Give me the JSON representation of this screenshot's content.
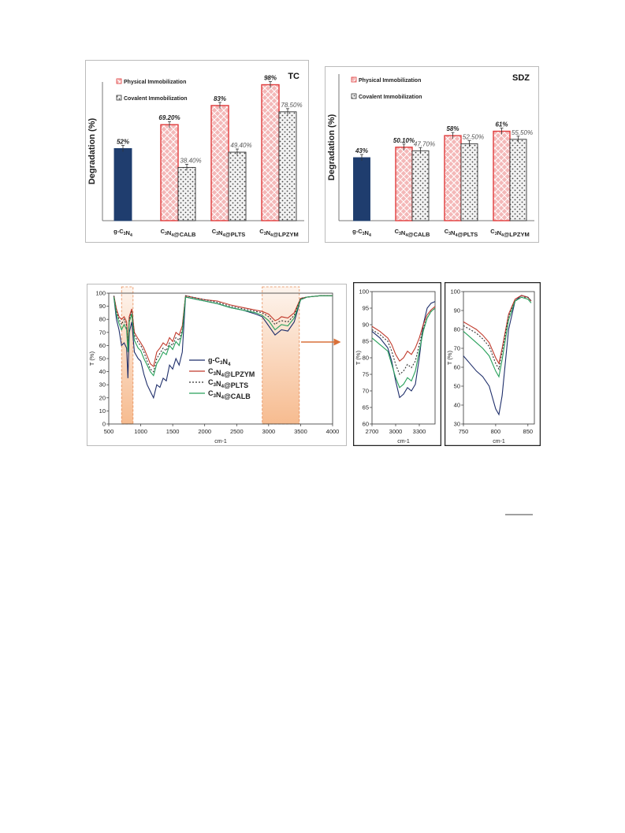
{
  "chart_data": [
    {
      "id": "tc",
      "type": "bar",
      "title": "TC",
      "ylabel": "Degradation (%)",
      "ylim": [
        0,
        100
      ],
      "grid": false,
      "legend_position": "top-left",
      "categories": [
        "g-C$N$",
        "C$N$@CALB",
        "C$N$@PLTS",
        "C$N$@LPZYM"
      ],
      "bars": [
        {
          "category": 0,
          "series": "base",
          "value": 52,
          "label": "52%"
        },
        {
          "category": 1,
          "series": "physical",
          "value": 69.2,
          "label": "69.20%"
        },
        {
          "category": 1,
          "series": "covalent",
          "value": 38.4,
          "label": "38.40%"
        },
        {
          "category": 2,
          "series": "physical",
          "value": 83,
          "label": "83%"
        },
        {
          "category": 2,
          "series": "covalent",
          "value": 49.4,
          "label": "49.40%"
        },
        {
          "category": 3,
          "series": "physical",
          "value": 98,
          "label": "98%"
        },
        {
          "category": 3,
          "series": "covalent",
          "value": 78.5,
          "label": "78.50%"
        }
      ],
      "legend": [
        {
          "series": "physical",
          "name": "Physical Immobilization"
        },
        {
          "series": "covalent",
          "name": "Covalent Immobilization"
        }
      ]
    },
    {
      "id": "sdz",
      "type": "bar",
      "title": "SDZ",
      "ylabel": "Degradation (%)",
      "ylim": [
        0,
        100
      ],
      "grid": false,
      "legend_position": "top-left",
      "categories": [
        "g-C$N$",
        "C$N$@CALB",
        "C$N$@PLTS",
        "C$N$@LPZYM"
      ],
      "bars": [
        {
          "category": 0,
          "series": "base",
          "value": 43,
          "label": "43%"
        },
        {
          "category": 1,
          "series": "physical",
          "value": 50.1,
          "label": "50.10%"
        },
        {
          "category": 1,
          "series": "covalent",
          "value": 47.7,
          "label": "47.70%"
        },
        {
          "category": 2,
          "series": "physical",
          "value": 58,
          "label": "58%"
        },
        {
          "category": 2,
          "series": "covalent",
          "value": 52.5,
          "label": "52.50%"
        },
        {
          "category": 3,
          "series": "physical",
          "value": 61,
          "label": "61%"
        },
        {
          "category": 3,
          "series": "covalent",
          "value": 55.5,
          "label": "55.50%"
        }
      ],
      "legend": [
        {
          "series": "physical",
          "name": "Physical Immobilization"
        },
        {
          "series": "covalent",
          "name": "Covalent Immobilization"
        }
      ]
    },
    {
      "id": "ftir-full",
      "type": "line",
      "xlabel": "cm-1",
      "ylabel": "T (%)",
      "xlim": [
        500,
        4000
      ],
      "ylim": [
        0,
        100
      ],
      "xticks": [
        500,
        1000,
        1500,
        2000,
        2500,
        3000,
        3500,
        4000
      ],
      "yticks": [
        0,
        10,
        20,
        30,
        40,
        50,
        60,
        70,
        80,
        90,
        100
      ],
      "highlight_regions": [
        [
          700,
          880
        ],
        [
          2900,
          3480
        ]
      ],
      "legend_position": "center-left",
      "series": [
        {
          "name": "g-C$N$",
          "color": "#1f2f6b",
          "dash": "",
          "x": [
            580,
            620,
            660,
            700,
            740,
            780,
            800,
            820,
            860,
            900,
            960,
            1000,
            1050,
            1100,
            1150,
            1200,
            1250,
            1300,
            1350,
            1400,
            1450,
            1500,
            1550,
            1600,
            1650,
            1700,
            1800,
            2000,
            2200,
            2400,
            2600,
            2800,
            2900,
            3000,
            3100,
            3150,
            3200,
            3300,
            3400,
            3500,
            3600,
            3800,
            4000
          ],
          "y": [
            97,
            80,
            72,
            60,
            62,
            58,
            35,
            70,
            78,
            55,
            50,
            48,
            38,
            30,
            25,
            20,
            30,
            28,
            35,
            33,
            45,
            42,
            50,
            45,
            55,
            97,
            96,
            94,
            92,
            89,
            87,
            84,
            82,
            75,
            68,
            70,
            72,
            71,
            78,
            95,
            97,
            98,
            98
          ]
        },
        {
          "name": "C$N$@LPZYM",
          "color": "#c0392b",
          "dash": "",
          "x": [
            580,
            620,
            660,
            700,
            740,
            780,
            800,
            820,
            860,
            900,
            960,
            1000,
            1050,
            1100,
            1150,
            1200,
            1250,
            1300,
            1350,
            1400,
            1450,
            1500,
            1550,
            1600,
            1650,
            1700,
            1800,
            2000,
            2200,
            2400,
            2600,
            2800,
            2900,
            3000,
            3100,
            3150,
            3200,
            3300,
            3400,
            3500,
            3600,
            3800,
            4000
          ],
          "y": [
            98,
            88,
            82,
            80,
            82,
            78,
            60,
            82,
            88,
            70,
            65,
            62,
            58,
            52,
            46,
            44,
            55,
            58,
            62,
            60,
            66,
            63,
            70,
            68,
            75,
            98,
            97,
            95,
            94,
            91,
            89,
            87,
            86,
            84,
            79,
            80,
            82,
            81,
            85,
            96,
            97,
            98,
            98
          ]
        },
        {
          "name": "C$N$@PLTS",
          "color": "#333333",
          "dash": "2,2",
          "x": [
            580,
            620,
            660,
            700,
            740,
            780,
            800,
            820,
            860,
            900,
            960,
            1000,
            1050,
            1100,
            1150,
            1200,
            1250,
            1300,
            1350,
            1400,
            1450,
            1500,
            1550,
            1600,
            1650,
            1700,
            1800,
            2000,
            2200,
            2400,
            2600,
            2800,
            2900,
            3000,
            3100,
            3150,
            3200,
            3300,
            3400,
            3500,
            3600,
            3800,
            4000
          ],
          "y": [
            98,
            86,
            80,
            76,
            80,
            75,
            58,
            80,
            86,
            68,
            62,
            60,
            55,
            48,
            42,
            40,
            50,
            54,
            58,
            56,
            62,
            60,
            66,
            64,
            72,
            98,
            97,
            95,
            93,
            90,
            88,
            86,
            85,
            82,
            76,
            78,
            79,
            78,
            83,
            96,
            97,
            98,
            98
          ]
        },
        {
          "name": "C$N$@CALB",
          "color": "#27a05a",
          "dash": "",
          "x": [
            580,
            620,
            660,
            700,
            740,
            780,
            800,
            820,
            860,
            900,
            960,
            1000,
            1050,
            1100,
            1150,
            1200,
            1250,
            1300,
            1350,
            1400,
            1450,
            1500,
            1550,
            1600,
            1650,
            1700,
            1800,
            2000,
            2200,
            2400,
            2600,
            2800,
            2900,
            3000,
            3100,
            3150,
            3200,
            3300,
            3400,
            3500,
            3600,
            3800,
            4000
          ],
          "y": [
            97,
            84,
            77,
            72,
            76,
            72,
            55,
            78,
            84,
            64,
            58,
            56,
            50,
            45,
            40,
            37,
            46,
            50,
            55,
            53,
            60,
            57,
            63,
            60,
            70,
            97,
            96,
            94,
            92,
            89,
            87,
            85,
            83,
            79,
            72,
            74,
            76,
            75,
            81,
            95,
            97,
            98,
            98
          ]
        }
      ]
    },
    {
      "id": "ftir-zoom-oh",
      "type": "line",
      "xlabel": "cm-1",
      "ylabel": "T (%)",
      "xlim": [
        2700,
        3500
      ],
      "ylim": [
        60,
        100
      ],
      "xticks": [
        2700,
        3000,
        3300
      ],
      "yticks": [
        60,
        65,
        70,
        75,
        80,
        85,
        90,
        95,
        100
      ],
      "series": [
        {
          "name": "g-C$N$",
          "color": "#1f2f6b",
          "dash": "",
          "x": [
            2700,
            2800,
            2900,
            2950,
            3000,
            3050,
            3100,
            3150,
            3200,
            3250,
            3300,
            3350,
            3400,
            3450,
            3500
          ],
          "y": [
            88,
            86,
            83,
            79,
            73,
            68,
            69,
            71,
            70,
            72,
            80,
            90,
            95,
            96.5,
            97
          ]
        },
        {
          "name": "C$N$@LPZYM",
          "color": "#c0392b",
          "dash": "",
          "x": [
            2700,
            2800,
            2900,
            2950,
            3000,
            3050,
            3100,
            3150,
            3200,
            3250,
            3300,
            3350,
            3400,
            3450,
            3500
          ],
          "y": [
            89.5,
            88,
            86,
            84,
            81,
            79,
            80,
            82,
            81,
            83,
            86,
            90,
            93,
            94.5,
            95.5
          ]
        },
        {
          "name": "C$N$@PLTS",
          "color": "#333333",
          "dash": "2,2",
          "x": [
            2700,
            2800,
            2900,
            2950,
            3000,
            3050,
            3100,
            3150,
            3200,
            3250,
            3300,
            3350,
            3400,
            3450,
            3500
          ],
          "y": [
            88.5,
            87,
            85,
            82,
            78,
            75,
            76,
            78,
            77,
            79,
            84,
            89,
            92,
            94,
            95
          ]
        },
        {
          "name": "C$N$@CALB",
          "color": "#27a05a",
          "dash": "",
          "x": [
            2700,
            2800,
            2900,
            2950,
            3000,
            3050,
            3100,
            3150,
            3200,
            3250,
            3300,
            3350,
            3400,
            3450,
            3500
          ],
          "y": [
            86,
            84,
            82,
            78,
            74,
            71,
            72,
            74,
            73,
            76,
            82,
            88,
            92,
            94,
            95
          ]
        }
      ]
    },
    {
      "id": "ftir-zoom-ring",
      "type": "line",
      "xlabel": "cm-1",
      "ylabel": "T (%)",
      "xlim": [
        750,
        860
      ],
      "ylim": [
        30,
        100
      ],
      "xticks": [
        750,
        800,
        850
      ],
      "yticks": [
        30,
        40,
        50,
        60,
        70,
        80,
        90,
        100
      ],
      "series": [
        {
          "name": "g-C$N$",
          "color": "#1f2f6b",
          "dash": "",
          "x": [
            750,
            760,
            770,
            780,
            790,
            800,
            805,
            810,
            820,
            830,
            840,
            850,
            855
          ],
          "y": [
            66,
            62,
            58,
            55,
            50,
            38,
            35,
            45,
            80,
            95,
            98,
            97,
            95
          ]
        },
        {
          "name": "C$N$@LPZYM",
          "color": "#c0392b",
          "dash": "",
          "x": [
            750,
            760,
            770,
            780,
            790,
            800,
            805,
            810,
            820,
            830,
            840,
            850,
            855
          ],
          "y": [
            84,
            82,
            80,
            77,
            73,
            65,
            62,
            70,
            88,
            96,
            98,
            97,
            95
          ]
        },
        {
          "name": "C$N$@PLTS",
          "color": "#333333",
          "dash": "2,2",
          "x": [
            750,
            760,
            770,
            780,
            790,
            800,
            805,
            810,
            820,
            830,
            840,
            850,
            855
          ],
          "y": [
            82,
            80,
            78,
            75,
            71,
            62,
            59,
            68,
            87,
            95,
            97,
            97,
            95
          ]
        },
        {
          "name": "C$N$@CALB",
          "color": "#27a05a",
          "dash": "",
          "x": [
            750,
            760,
            770,
            780,
            790,
            800,
            805,
            810,
            820,
            830,
            840,
            850,
            855
          ],
          "y": [
            79,
            76,
            73,
            70,
            66,
            58,
            55,
            64,
            85,
            95,
            97,
            96,
            94
          ]
        }
      ]
    }
  ],
  "colors": {
    "base_bar": "#1f3d6e",
    "physical_fill": "#f4b8b8",
    "physical_stroke": "#e03c3c",
    "covalent_fill": "#f2f2f2",
    "highlight": "#f6b88a"
  }
}
